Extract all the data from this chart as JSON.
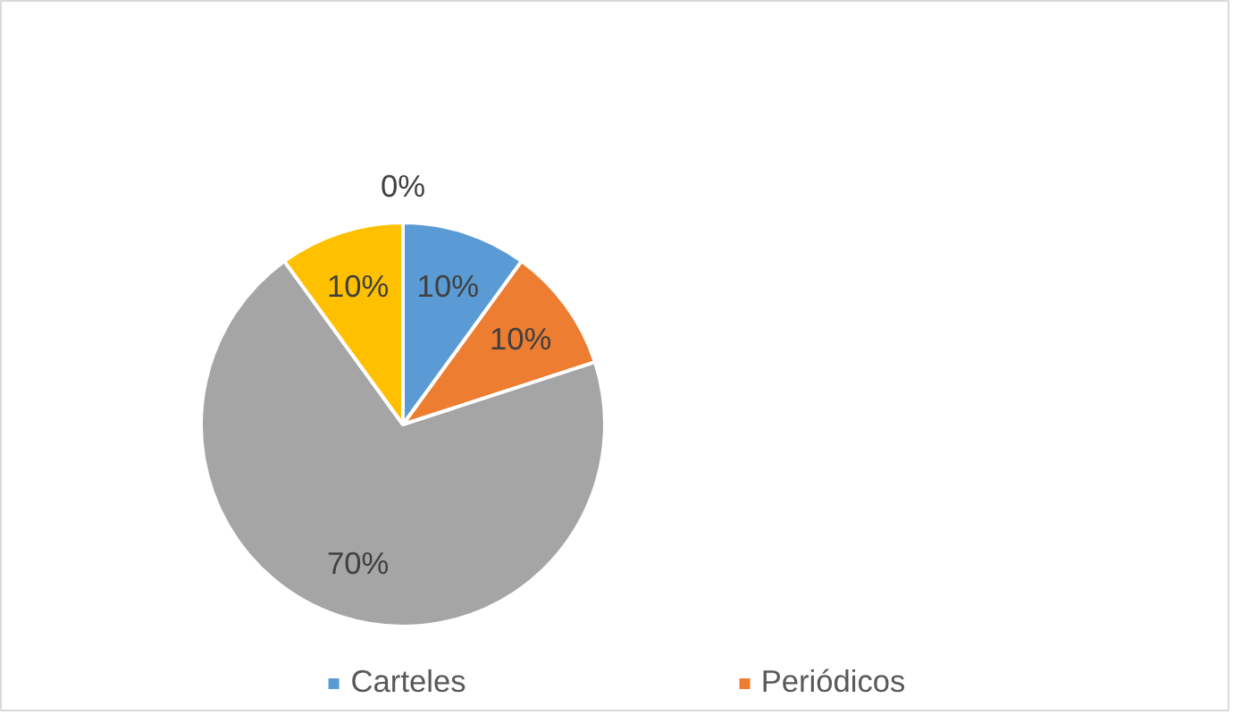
{
  "chart_data": {
    "type": "pie",
    "categories": [
      "Carteles",
      "Periódicos",
      null,
      null,
      null
    ],
    "values": [
      10,
      10,
      70,
      10,
      0
    ],
    "colors": [
      "#5b9bd5",
      "#ed7d31",
      "#a5a5a5",
      "#ffc000",
      "#4472c4"
    ],
    "value_labels": [
      "10%",
      "10%",
      "70%",
      "10%",
      "0%"
    ],
    "legend": "bottom"
  }
}
